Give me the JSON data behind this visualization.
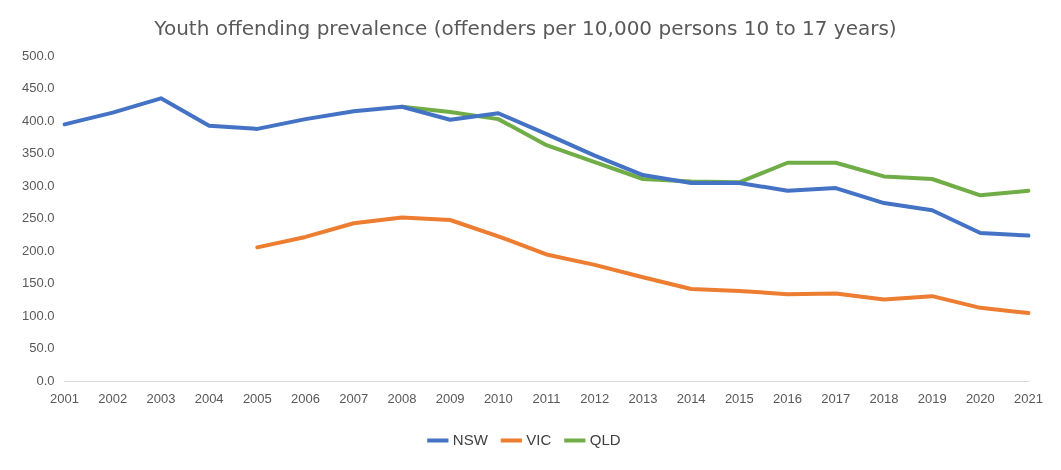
{
  "chart_data": {
    "type": "line",
    "title": "Youth offending prevalence (offenders per 10,000 persons 10 to 17 years)",
    "categories": [
      "2001",
      "2002",
      "2003",
      "2004",
      "2005",
      "2006",
      "2007",
      "2008",
      "2009",
      "2010",
      "2011",
      "2012",
      "2013",
      "2014",
      "2015",
      "2016",
      "2017",
      "2018",
      "2019",
      "2020",
      "2021"
    ],
    "series": [
      {
        "name": "NSW",
        "color": "#4472c4",
        "values": [
          395,
          413,
          435,
          393,
          388,
          403,
          415,
          422,
          402,
          412,
          380,
          347,
          317,
          305,
          305,
          293,
          297,
          274,
          263,
          228,
          224
        ]
      },
      {
        "name": "VIC",
        "color": "#ed7d31",
        "values": [
          null,
          null,
          null,
          null,
          206,
          222,
          243,
          252,
          248,
          223,
          195,
          179,
          160,
          142,
          139,
          134,
          135,
          126,
          131,
          113,
          105
        ]
      },
      {
        "name": "QLD",
        "color": "#70ad47",
        "values": [
          null,
          null,
          null,
          null,
          null,
          null,
          null,
          422,
          414,
          403,
          363,
          337,
          311,
          307,
          306,
          336,
          336,
          315,
          311,
          286,
          293
        ]
      }
    ],
    "ylim": [
      0,
      500
    ],
    "yticks": [
      {
        "value": 0,
        "label": "0.0"
      },
      {
        "value": 50,
        "label": "50.0"
      },
      {
        "value": 100,
        "label": "100.0"
      },
      {
        "value": 150,
        "label": "150.0"
      },
      {
        "value": 200,
        "label": "200.0"
      },
      {
        "value": 250,
        "label": "250.0"
      },
      {
        "value": 300,
        "label": "300.0"
      },
      {
        "value": 350,
        "label": "350.0"
      },
      {
        "value": 400,
        "label": "400.0"
      },
      {
        "value": 450,
        "label": "450.0"
      },
      {
        "value": 500,
        "label": "500.0"
      }
    ],
    "grid": false,
    "legend": "bottom",
    "marker": "none",
    "line_style": "solid"
  }
}
